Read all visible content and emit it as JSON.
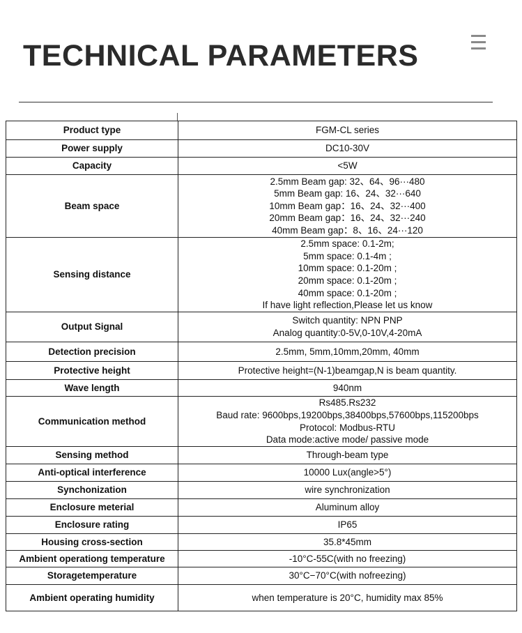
{
  "header": {
    "title": "TECHNICAL PARAMETERS",
    "menu_icon": "hamburger-menu-icon"
  },
  "rows": [
    {
      "label": "Product type",
      "values": [
        "FGM-CL series"
      ]
    },
    {
      "label": "Power supply",
      "values": [
        "DC10-30V"
      ]
    },
    {
      "label": "Capacity",
      "values": [
        "<5W"
      ]
    },
    {
      "label": "Beam space",
      "values": [
        "2.5mm Beam gap: 32、64、96···480",
        "5mm Beam gap: 16、24、32···640",
        "10mm Beam gap：16、24、32···400",
        "20mm Beam gap：16、24、32···240",
        "40mm Beam gap：8、16、24···120"
      ]
    },
    {
      "label": "Sensing distance",
      "values": [
        "2.5mm space: 0.1-2m;",
        "5mm space: 0.1-4m ;",
        "10mm space: 0.1-20m ;",
        "20mm space: 0.1-20m ;",
        "40mm space: 0.1-20m ;",
        "If have light reflection,Please let us know"
      ]
    },
    {
      "label": "Output Signal",
      "values": [
        "Switch quantity: NPN PNP",
        "Analog quantity:0-5V,0-10V,4-20mA"
      ]
    },
    {
      "label": "Detection precision",
      "values": [
        "2.5mm, 5mm,10mm,20mm, 40mm"
      ]
    },
    {
      "label": "Protective height",
      "values": [
        "Protective height=(N-1)beamgap,N is beam quantity."
      ]
    },
    {
      "label": "Wave length",
      "values": [
        "940nm"
      ]
    },
    {
      "label": "Communication method",
      "values": [
        "Rs485.Rs232",
        "Baud rate: 9600bps,19200bps,38400bps,57600bps,115200bps",
        "Protocol: Modbus-RTU",
        "Data mode:active mode/ passive mode"
      ]
    },
    {
      "label": "Sensing method",
      "values": [
        "Through-beam type"
      ]
    },
    {
      "label": "Anti-optical interference",
      "values": [
        "10000 Lux(angle>5°)"
      ]
    },
    {
      "label": "Synchonization",
      "values": [
        "wire synchronization"
      ]
    },
    {
      "label": "Enclosure meterial",
      "values": [
        "Aluminum alloy"
      ]
    },
    {
      "label": "Enclosure rating",
      "values": [
        "IP65"
      ]
    },
    {
      "label": "Housing cross-section",
      "values": [
        "35.8*45mm"
      ]
    },
    {
      "label": "Ambient operationg temperature",
      "values": [
        "-10°C-55C(with no freezing)"
      ]
    },
    {
      "label": "Storagetemperature",
      "values": [
        "30°C−70°C(with nofreezing)"
      ]
    },
    {
      "label": "Ambient operating humidity",
      "values": [
        "when temperature is 20°C, humidity max 85%"
      ]
    }
  ]
}
